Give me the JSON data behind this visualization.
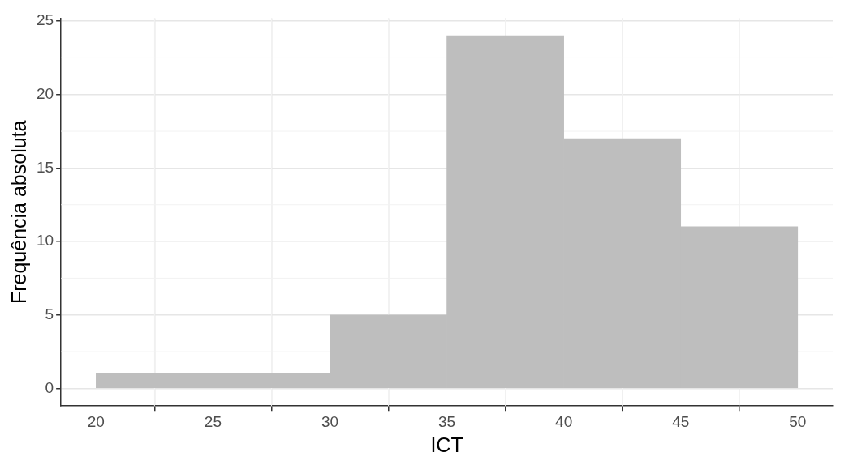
{
  "chart_data": {
    "type": "histogram",
    "xlabel": "ICT",
    "ylabel": "Frequência absoluta",
    "bins": [
      20,
      25,
      30,
      35,
      40,
      45,
      50
    ],
    "values": [
      1,
      1,
      5,
      24,
      17,
      11
    ],
    "color": "#bebebe",
    "xlim": [
      18.5,
      51.5
    ],
    "xticks": [
      20,
      25,
      30,
      35,
      40,
      45,
      50
    ],
    "ylim": [
      -1.2,
      25.2
    ],
    "yticks": [
      0,
      5,
      10,
      15,
      20,
      25
    ],
    "grid": true,
    "legend": false
  }
}
